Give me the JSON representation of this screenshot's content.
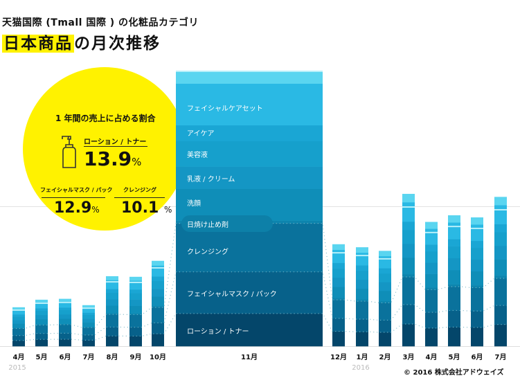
{
  "title": {
    "line1": "天猫国際 (Tmall 国際 ) の化粧品カテゴリ",
    "line2_highlight": "日本商品",
    "line2_rest": "の月次推移"
  },
  "callout": {
    "heading": "1 年間の売上に占める割合",
    "icon": "lotion-bottle-icon",
    "items": [
      {
        "label": "ローション / トナー",
        "value": "13.9",
        "unit": "%"
      },
      {
        "label": "フェイシャルマスク / パック",
        "value": "12.9",
        "unit": "%"
      },
      {
        "label": "クレンジング",
        "value": "10.1",
        "unit": "%"
      }
    ],
    "color": "#fff200"
  },
  "copyright": "© 2016 株式会社アドウェイズ",
  "chart_data": {
    "type": "bar",
    "stacked": true,
    "categories": [
      "4月",
      "5月",
      "6月",
      "7月",
      "8月",
      "9月",
      "10月",
      "11月",
      "12月",
      "1月",
      "2月",
      "3月",
      "4月",
      "5月",
      "6月",
      "7月"
    ],
    "year_labels": [
      {
        "label": "2015",
        "at": "4月"
      },
      {
        "label": "2016",
        "at": "1月"
      }
    ],
    "values_relative": [
      12.9,
      15.4,
      15.7,
      13.6,
      23.2,
      23.0,
      28.3,
      100,
      33.8,
      32.8,
      31.6,
      50.5,
      41.2,
      43.4,
      42.7,
      49.5
    ],
    "highlight_category": "11月",
    "segments_nov": [
      {
        "label": "ローション / トナー",
        "share": 11.9,
        "color": "#04466a"
      },
      {
        "label": "フェイシャルマスク / パック",
        "share": 15.2,
        "color": "#07618a"
      },
      {
        "label": "クレンジング",
        "share": 17.7,
        "color": "#0a729c"
      },
      {
        "label": "日焼け止め剤",
        "share": 1.0,
        "color": "#0d84ad"
      },
      {
        "label": "洗顔",
        "share": 11.6,
        "color": "#0f8eb8"
      },
      {
        "label": "乳液 / クリーム",
        "share": 8.1,
        "color": "#1496c4"
      },
      {
        "label": "美容液",
        "share": 9.3,
        "color": "#16a0cc"
      },
      {
        "label": "アイケア",
        "share": 5.8,
        "color": "#1aa6d4"
      },
      {
        "label": "フェイシャルケアセット",
        "share": 15.2,
        "color": "#2ab9e4"
      },
      {
        "label": "",
        "share": 4.2,
        "color": "#5ad5f0"
      }
    ],
    "grid": false,
    "legend": "none"
  }
}
